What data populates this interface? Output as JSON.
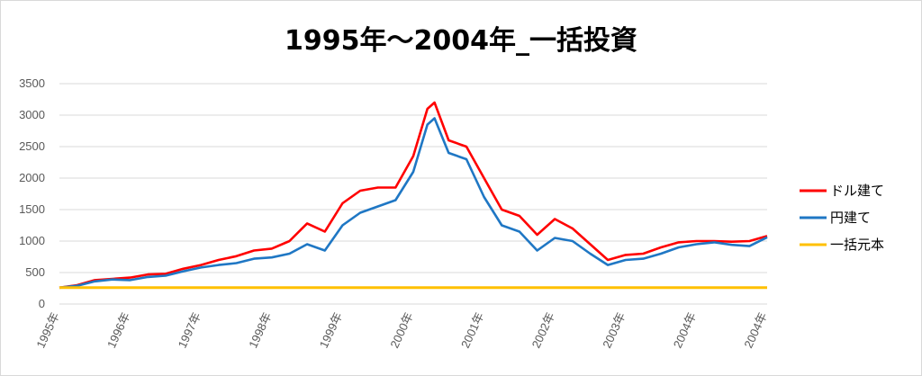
{
  "chart_data": {
    "type": "line",
    "title": "1995年～2004年_一括投資",
    "xlabel": "",
    "ylabel": "",
    "ylim": [
      0,
      3500
    ],
    "y_ticks": [
      "0",
      "500",
      "1000",
      "1500",
      "2000",
      "2500",
      "3000",
      "3500"
    ],
    "x_ticks": [
      "1995年",
      "1996年",
      "1997年",
      "1998年",
      "1999年",
      "2000年",
      "2001年",
      "2002年",
      "2003年",
      "2004年",
      "2004年"
    ],
    "grid": true,
    "legend_position": "right",
    "colors": {
      "dollar": "#ff0000",
      "yen": "#1f77c4",
      "principal": "#ffc000"
    },
    "series": [
      {
        "name": "ドル建て",
        "x": [
          0,
          0.25,
          0.5,
          0.75,
          1,
          1.25,
          1.5,
          1.75,
          2,
          2.25,
          2.5,
          2.75,
          3,
          3.25,
          3.5,
          3.75,
          4,
          4.25,
          4.5,
          4.75,
          5,
          5.2,
          5.3,
          5.5,
          5.75,
          6,
          6.25,
          6.5,
          6.75,
          7,
          7.25,
          7.5,
          7.75,
          8,
          8.25,
          8.5,
          8.75,
          9,
          9.25,
          9.5,
          9.75,
          10
        ],
        "values": [
          260,
          300,
          380,
          400,
          420,
          470,
          480,
          560,
          620,
          700,
          760,
          850,
          880,
          1000,
          1280,
          1150,
          1600,
          1800,
          1850,
          1850,
          2350,
          3100,
          3200,
          2600,
          2500,
          2000,
          1500,
          1400,
          1100,
          1350,
          1200,
          950,
          700,
          780,
          800,
          900,
          980,
          1000,
          1000,
          990,
          1000,
          1080
        ]
      },
      {
        "name": "円建て",
        "x": [
          0,
          0.25,
          0.5,
          0.75,
          1,
          1.25,
          1.5,
          1.75,
          2,
          2.25,
          2.5,
          2.75,
          3,
          3.25,
          3.5,
          3.75,
          4,
          4.25,
          4.5,
          4.75,
          5,
          5.2,
          5.3,
          5.5,
          5.75,
          6,
          6.25,
          6.5,
          6.75,
          7,
          7.25,
          7.5,
          7.75,
          8,
          8.25,
          8.5,
          8.75,
          9,
          9.25,
          9.5,
          9.75,
          10
        ],
        "values": [
          260,
          290,
          360,
          390,
          380,
          430,
          450,
          520,
          580,
          620,
          650,
          720,
          740,
          800,
          950,
          850,
          1250,
          1450,
          1550,
          1650,
          2100,
          2850,
          2950,
          2400,
          2300,
          1700,
          1250,
          1150,
          850,
          1050,
          1000,
          800,
          620,
          700,
          720,
          800,
          900,
          950,
          980,
          940,
          920,
          1060
        ]
      },
      {
        "name": "一括元本",
        "x": [
          0,
          10
        ],
        "values": [
          260,
          260
        ]
      }
    ]
  }
}
